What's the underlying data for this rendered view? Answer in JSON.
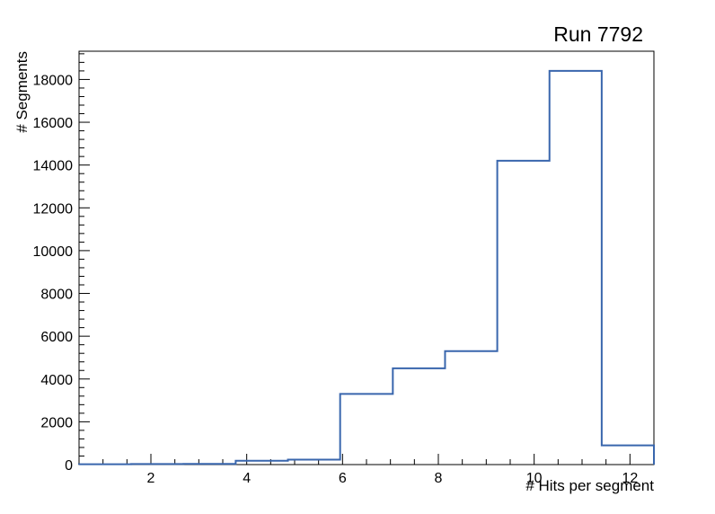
{
  "title": "Run 7792",
  "chart_data": {
    "type": "histogram-step",
    "title": "Run 7792",
    "xlabel": "# Hits per segment",
    "ylabel": "# Segments",
    "xlim": [
      0.5,
      12.5
    ],
    "ylim": [
      0,
      19320
    ],
    "x_ticks_major": [
      2,
      4,
      6,
      8,
      10,
      12
    ],
    "x_minor_step": 0.5,
    "y_ticks_major": [
      0,
      2000,
      4000,
      6000,
      8000,
      10000,
      12000,
      14000,
      16000,
      18000
    ],
    "y_minor_step": 400,
    "bin_edges": [
      0.5,
      1.59,
      2.68,
      3.77,
      4.86,
      5.95,
      7.05,
      8.14,
      9.23,
      10.32,
      11.41,
      12.5
    ],
    "counts": [
      15,
      25,
      30,
      180,
      230,
      3300,
      4500,
      5300,
      14200,
      18400,
      900
    ],
    "line_color": "#3966ad",
    "frame_color": "#000000",
    "grid": false,
    "legend": false
  }
}
